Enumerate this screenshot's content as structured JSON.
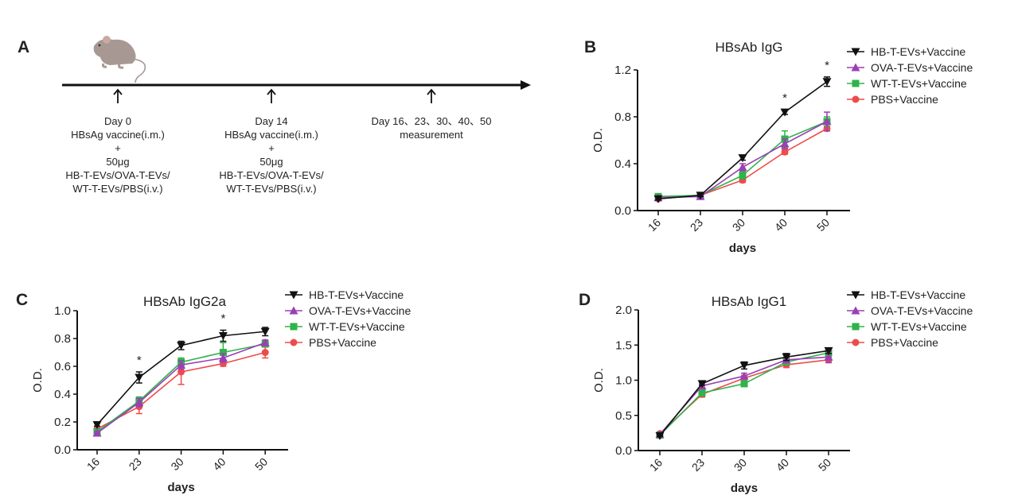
{
  "panels": {
    "A": {
      "letter": "A",
      "timeline": [
        {
          "lines": [
            "Day 0",
            "HBsAg  vaccine(i.m.)",
            "+",
            "50μg",
            "HB-T-EVs/OVA-T-EVs/",
            "WT-T-EVs/PBS(i.v.)"
          ]
        },
        {
          "lines": [
            "Day 14",
            "HBsAg  vaccine(i.m.)",
            "+",
            "50μg",
            "HB-T-EVs/OVA-T-EVs/",
            "WT-T-EVs/PBS(i.v.)"
          ]
        },
        {
          "lines": [
            "Day 16、23、30、40、50",
            "measurement"
          ]
        }
      ]
    },
    "B": {
      "letter": "B"
    },
    "C": {
      "letter": "C"
    },
    "D": {
      "letter": "D"
    }
  },
  "colors": {
    "HB": "#111111",
    "OVA": "#9b3fb5",
    "WT": "#2fb34a",
    "PBS": "#ee4b4b"
  },
  "chart_data": [
    {
      "id": "B",
      "type": "line",
      "title": "HBsAb IgG",
      "xlabel": "days",
      "ylabel": "O.D.",
      "categories": [
        "16",
        "23",
        "30",
        "40",
        "50"
      ],
      "ylim": [
        0,
        1.2
      ],
      "yticks": [
        "0.0",
        "0.4",
        "0.8",
        "1.2"
      ],
      "ytick_values": [
        0,
        0.4,
        0.8,
        1.2
      ],
      "legend": "right",
      "significance": [
        {
          "category": "40",
          "label": "*"
        },
        {
          "category": "50",
          "label": "*"
        }
      ],
      "series": [
        {
          "key": "HB",
          "name": "HB-T-EVs+Vaccine",
          "marker": "triangle-down",
          "values": [
            0.1,
            0.13,
            0.45,
            0.84,
            1.1
          ],
          "err": [
            0.01,
            0.01,
            0.02,
            0.02,
            0.04
          ]
        },
        {
          "key": "OVA",
          "name": "OVA-T-EVs+Vaccine",
          "marker": "triangle-up",
          "values": [
            0.11,
            0.12,
            0.37,
            0.57,
            0.76
          ],
          "err": [
            0.01,
            0.01,
            0.03,
            0.04,
            0.08
          ]
        },
        {
          "key": "WT",
          "name": "WT-T-EVs+Vaccine",
          "marker": "square",
          "values": [
            0.12,
            0.13,
            0.3,
            0.61,
            0.76
          ],
          "err": [
            0.01,
            0.01,
            0.03,
            0.07,
            0.04
          ]
        },
        {
          "key": "PBS",
          "name": "PBS+Vaccine",
          "marker": "circle",
          "values": [
            0.1,
            0.13,
            0.26,
            0.5,
            0.7
          ],
          "err": [
            0.01,
            0.01,
            0.02,
            0.02,
            0.02
          ]
        }
      ]
    },
    {
      "id": "C",
      "type": "line",
      "title": "HBsAb IgG2a",
      "xlabel": "days",
      "ylabel": "O.D.",
      "categories": [
        "16",
        "23",
        "30",
        "40",
        "50"
      ],
      "ylim": [
        0,
        1.0
      ],
      "yticks": [
        "0.0",
        "0.2",
        "0.4",
        "0.6",
        "0.8",
        "1.0"
      ],
      "ytick_values": [
        0,
        0.2,
        0.4,
        0.6,
        0.8,
        1.0
      ],
      "legend": "right",
      "significance": [
        {
          "category": "23",
          "label": "*"
        },
        {
          "category": "40",
          "label": "*"
        }
      ],
      "series": [
        {
          "key": "HB",
          "name": "HB-T-EVs+Vaccine",
          "marker": "triangle-down",
          "values": [
            0.18,
            0.52,
            0.75,
            0.82,
            0.85
          ],
          "err": [
            0.01,
            0.04,
            0.03,
            0.04,
            0.03
          ]
        },
        {
          "key": "OVA",
          "name": "OVA-T-EVs+Vaccine",
          "marker": "triangle-up",
          "values": [
            0.12,
            0.34,
            0.61,
            0.66,
            0.77
          ],
          "err": [
            0.01,
            0.03,
            0.03,
            0.03,
            0.02
          ]
        },
        {
          "key": "WT",
          "name": "WT-T-EVs+Vaccine",
          "marker": "square",
          "values": [
            0.13,
            0.35,
            0.63,
            0.7,
            0.76
          ],
          "err": [
            0.01,
            0.03,
            0.03,
            0.07,
            0.02
          ]
        },
        {
          "key": "PBS",
          "name": "PBS+Vaccine",
          "marker": "circle",
          "values": [
            0.15,
            0.31,
            0.56,
            0.62,
            0.7
          ],
          "err": [
            0.02,
            0.05,
            0.09,
            0.02,
            0.04
          ]
        }
      ]
    },
    {
      "id": "D",
      "type": "line",
      "title": "HBsAb IgG1",
      "xlabel": "days",
      "ylabel": "O.D.",
      "categories": [
        "16",
        "23",
        "30",
        "40",
        "50"
      ],
      "ylim": [
        0,
        2.0
      ],
      "yticks": [
        "0.0",
        "0.5",
        "1.0",
        "1.5",
        "2.0"
      ],
      "ytick_values": [
        0,
        0.5,
        1.0,
        1.5,
        2.0
      ],
      "legend": "right",
      "significance": [],
      "series": [
        {
          "key": "HB",
          "name": "HB-T-EVs+Vaccine",
          "marker": "triangle-down",
          "values": [
            0.21,
            0.95,
            1.21,
            1.33,
            1.42
          ],
          "err": [
            0.01,
            0.02,
            0.05,
            0.05,
            0.04
          ]
        },
        {
          "key": "OVA",
          "name": "OVA-T-EVs+Vaccine",
          "marker": "triangle-up",
          "values": [
            0.23,
            0.92,
            1.06,
            1.29,
            1.33
          ],
          "err": [
            0.01,
            0.03,
            0.04,
            0.03,
            0.08
          ]
        },
        {
          "key": "WT",
          "name": "WT-T-EVs+Vaccine",
          "marker": "square",
          "values": [
            0.22,
            0.82,
            0.95,
            1.26,
            1.39
          ],
          "err": [
            0.01,
            0.04,
            0.03,
            0.03,
            0.05
          ]
        },
        {
          "key": "PBS",
          "name": "PBS+Vaccine",
          "marker": "circle",
          "values": [
            0.24,
            0.8,
            1.03,
            1.22,
            1.29
          ],
          "err": [
            0.01,
            0.04,
            0.04,
            0.04,
            0.04
          ]
        }
      ]
    }
  ]
}
